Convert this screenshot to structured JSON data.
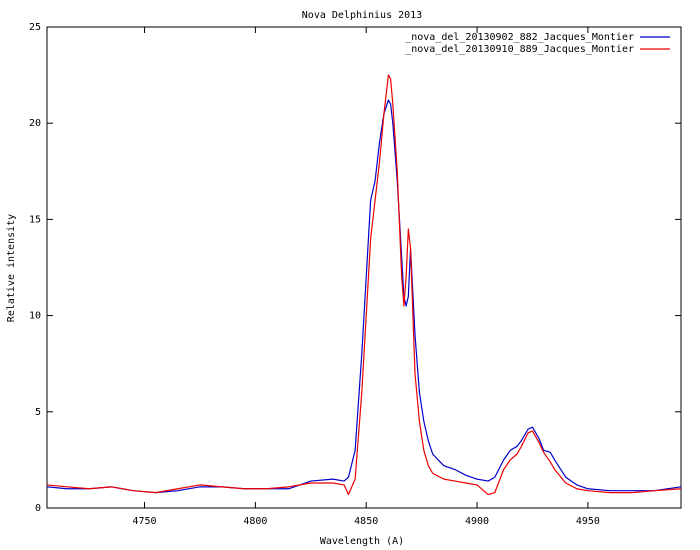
{
  "chart_data": {
    "type": "line",
    "title": "Nova Delphinius 2013",
    "xlabel": "Wavelength (A)",
    "ylabel": "Relative intensity",
    "x": [
      4706,
      4715,
      4725,
      4735,
      4745,
      4755,
      4765,
      4775,
      4785,
      4795,
      4805,
      4815,
      4825,
      4835,
      4840,
      4842,
      4845,
      4848,
      4850,
      4852,
      4854,
      4856,
      4858,
      4860,
      4861,
      4862,
      4864,
      4866,
      4867,
      4868,
      4869,
      4870,
      4872,
      4874,
      4876,
      4878,
      4880,
      4885,
      4890,
      4895,
      4900,
      4905,
      4908,
      4912,
      4915,
      4918,
      4920,
      4923,
      4925,
      4928,
      4930,
      4933,
      4935,
      4940,
      4945,
      4950,
      4960,
      4970,
      4980,
      4992
    ],
    "series": [
      {
        "name": "_nova_del_20130902_882_Jacques_Montier",
        "color": "#0000cc",
        "values": [
          1.1,
          1.0,
          1.0,
          1.1,
          0.9,
          0.8,
          0.9,
          1.1,
          1.1,
          1.0,
          1.0,
          1.0,
          1.4,
          1.5,
          1.4,
          1.6,
          3,
          8,
          12,
          16,
          17,
          19,
          20.5,
          21.2,
          21,
          20,
          17,
          13,
          11,
          10.5,
          11,
          13.5,
          9,
          6,
          4.5,
          3.5,
          2.8,
          2.2,
          2.0,
          1.7,
          1.5,
          1.4,
          1.6,
          2.5,
          3,
          3.2,
          3.5,
          4.1,
          4.2,
          3.6,
          3.0,
          2.9,
          2.5,
          1.6,
          1.2,
          1.0,
          0.9,
          0.9,
          0.9,
          1.1
        ]
      },
      {
        "name": "_nova_del_20130910_889_Jacques_Montier",
        "color": "#ee0000",
        "values": [
          1.2,
          1.1,
          1.0,
          1.1,
          0.9,
          0.8,
          1.0,
          1.2,
          1.1,
          1.0,
          1.0,
          1.1,
          1.3,
          1.3,
          1.2,
          0.7,
          1.5,
          6,
          10,
          14,
          16,
          18,
          20.5,
          22.5,
          22.3,
          21,
          17.5,
          12,
          10.5,
          12,
          14.5,
          13.5,
          7,
          4.5,
          3,
          2.2,
          1.8,
          1.5,
          1.4,
          1.3,
          1.2,
          0.7,
          0.8,
          2.0,
          2.5,
          2.8,
          3.2,
          3.9,
          4.0,
          3.4,
          2.9,
          2.4,
          2.0,
          1.3,
          1.0,
          0.9,
          0.8,
          0.8,
          0.9,
          1.0
        ]
      }
    ],
    "xlim": [
      4706,
      4992
    ],
    "xticks": [
      4750,
      4800,
      4850,
      4900,
      4950
    ],
    "ylim": [
      0,
      25
    ],
    "yticks": [
      0,
      5,
      10,
      15,
      20,
      25
    ],
    "legend": "top-right"
  }
}
